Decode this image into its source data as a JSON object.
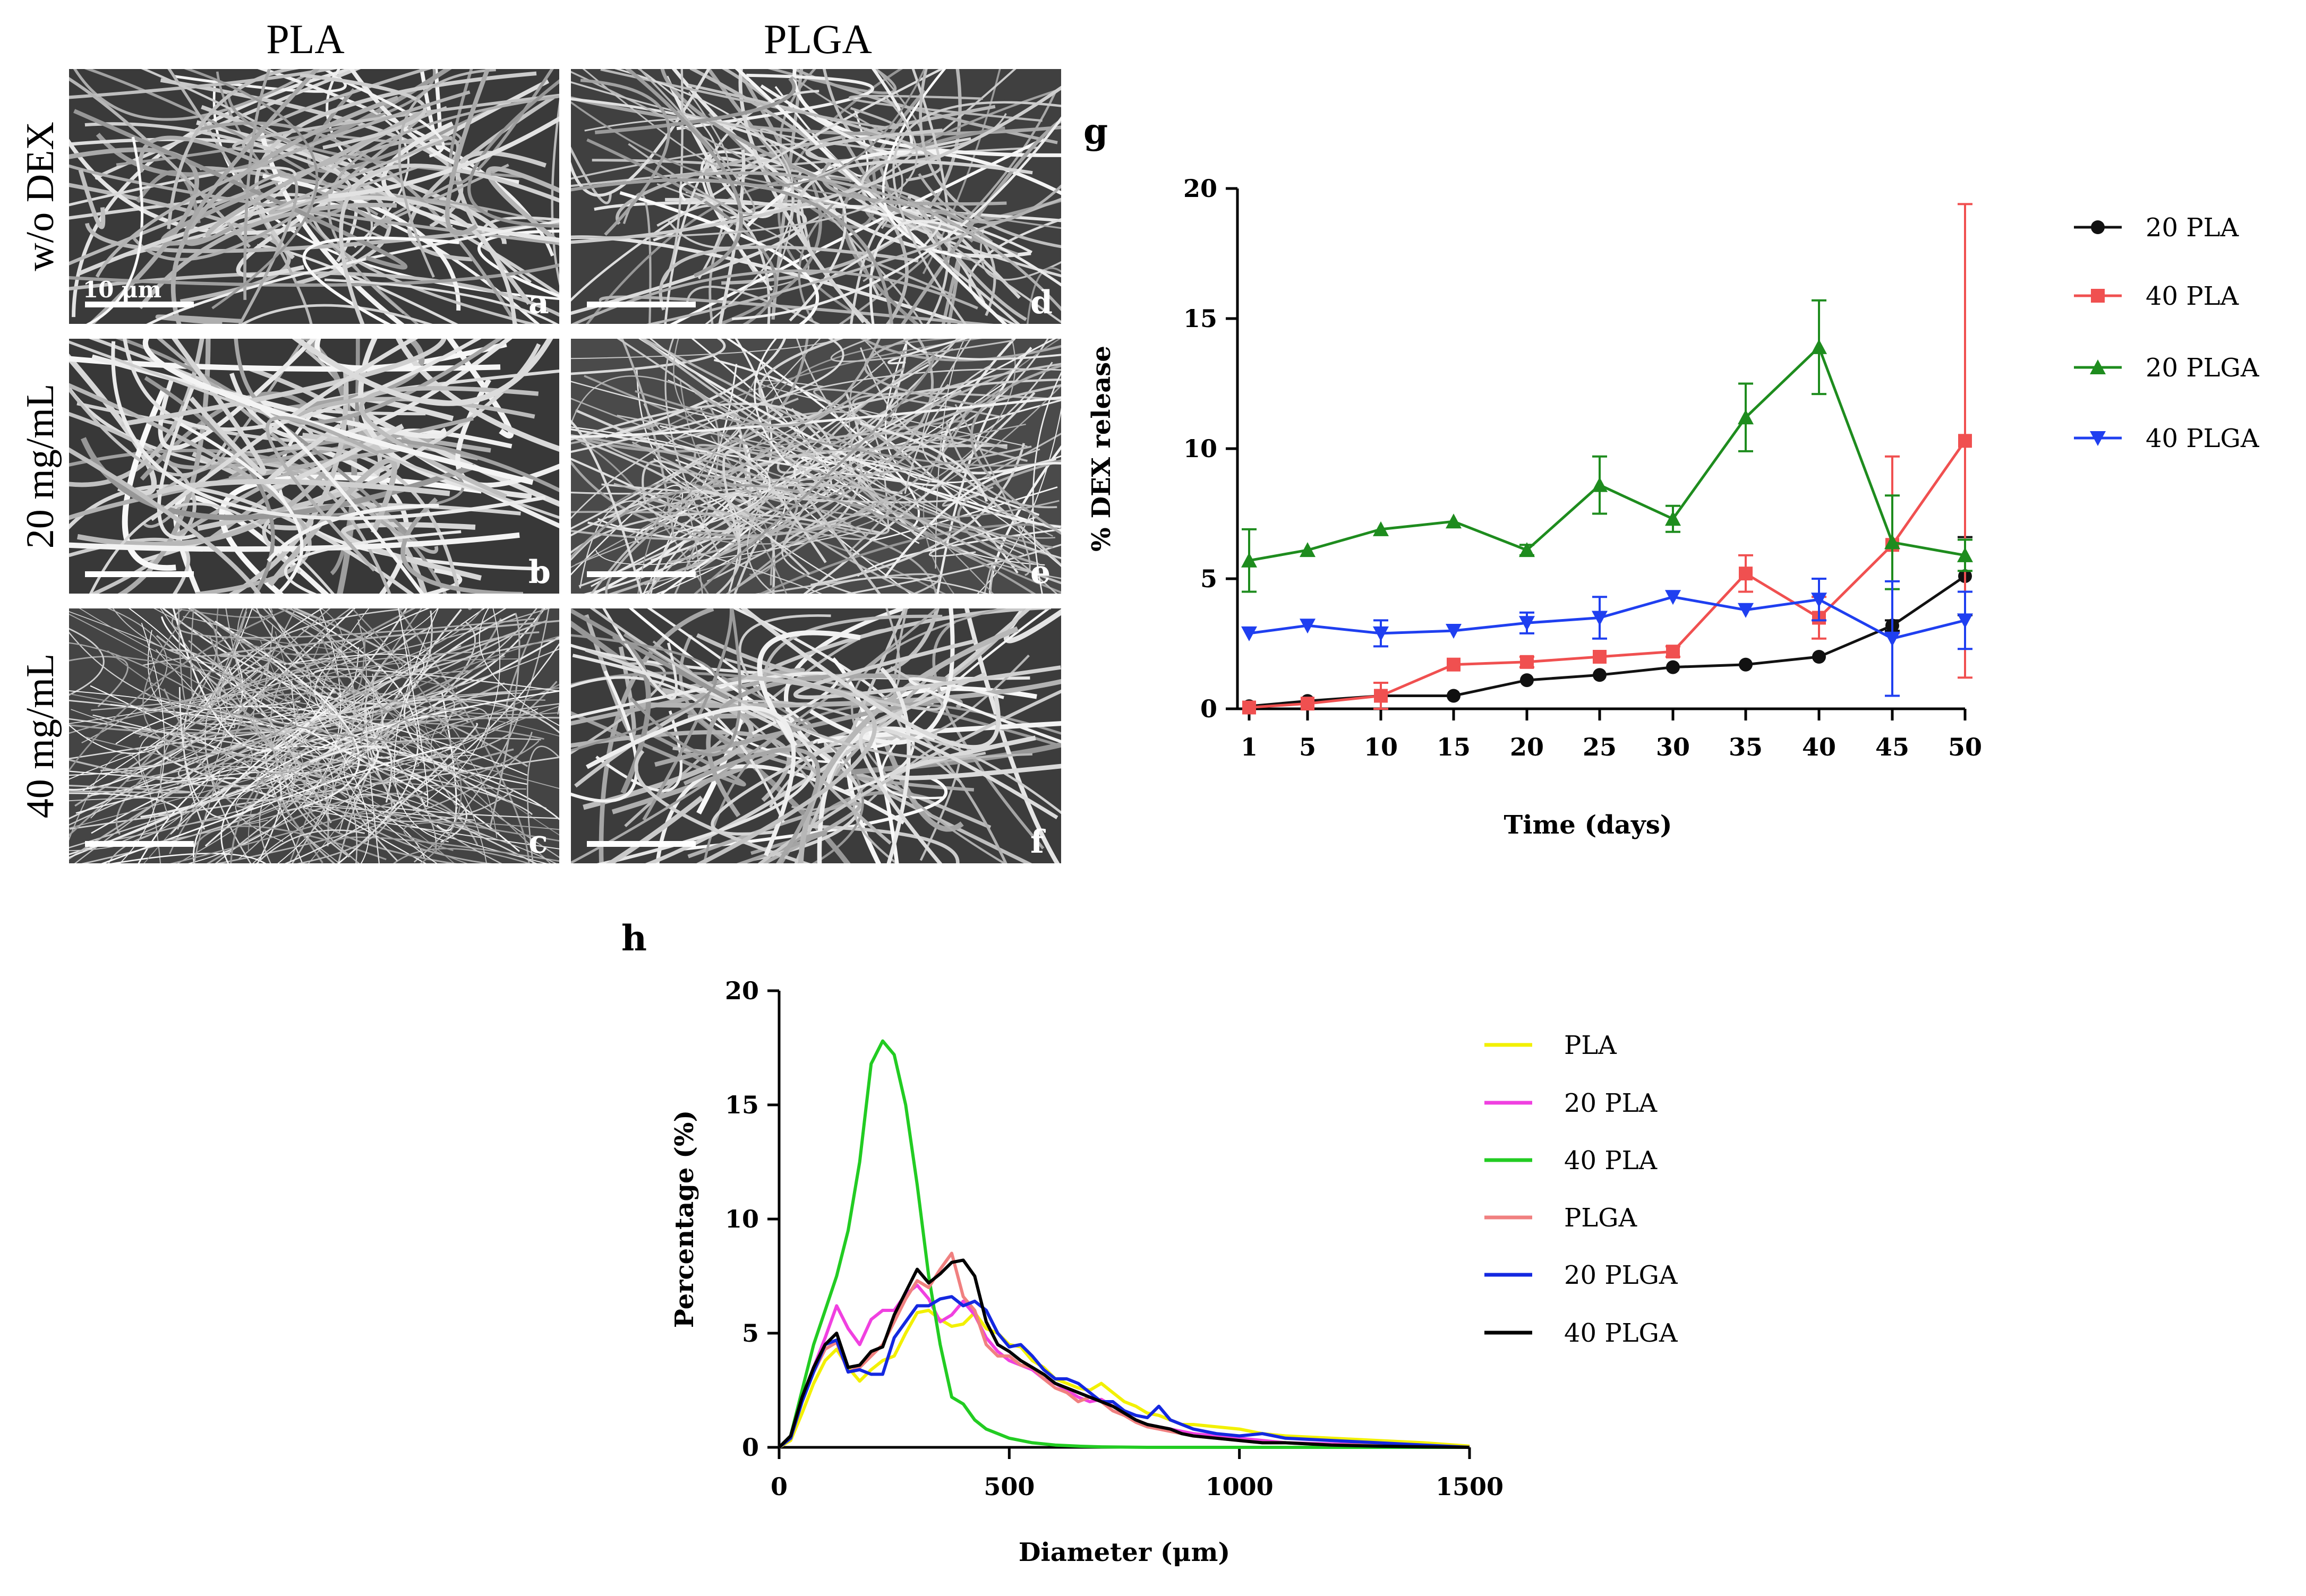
{
  "sem_figure": {
    "columns": [
      "PLA",
      "PLGA"
    ],
    "rows": [
      "w/o DEX",
      "20 mg/mL",
      "40 mg/mL"
    ],
    "panels": [
      {
        "letter": "a",
        "row": 0,
        "col": 0,
        "texture": "pla-dense"
      },
      {
        "letter": "d",
        "row": 0,
        "col": 1,
        "texture": "plga-dense"
      },
      {
        "letter": "b",
        "row": 1,
        "col": 0,
        "texture": "pla-thick"
      },
      {
        "letter": "e",
        "row": 1,
        "col": 1,
        "texture": "plga-fine"
      },
      {
        "letter": "c",
        "row": 2,
        "col": 0,
        "texture": "pla-fine"
      },
      {
        "letter": "f",
        "row": 2,
        "col": 1,
        "texture": "plga-thick"
      }
    ],
    "scale_bar_label": "10 μm"
  },
  "chart_data": [
    {
      "panel_letter": "g",
      "type": "line",
      "title": "",
      "xlabel": "Time (days)",
      "ylabel": "% DEX release",
      "categories": [
        "1",
        "5",
        "10",
        "15",
        "20",
        "25",
        "30",
        "35",
        "40",
        "45",
        "50"
      ],
      "ylim": [
        0,
        20
      ],
      "yticks": [
        0,
        5,
        10,
        15,
        20
      ],
      "legend_position": "right",
      "series": [
        {
          "name": "20 PLA",
          "color": "#111111",
          "marker": "circle",
          "values": [
            0.1,
            0.3,
            0.5,
            0.5,
            1.1,
            1.3,
            1.6,
            1.7,
            2.0,
            3.2,
            5.1
          ],
          "errors": [
            0.1,
            0.05,
            0.1,
            0.1,
            0.1,
            0.1,
            0.1,
            0.1,
            0.1,
            0.2,
            1.5
          ]
        },
        {
          "name": "40 PLA",
          "color": "#f05050",
          "marker": "square",
          "values": [
            0.05,
            0.2,
            0.5,
            1.7,
            1.8,
            2.0,
            2.2,
            5.2,
            3.5,
            6.3,
            10.3
          ],
          "errors": [
            0.05,
            0.1,
            0.5,
            0.1,
            0.2,
            0.1,
            0.2,
            0.7,
            0.8,
            3.4,
            9.1
          ]
        },
        {
          "name": "20 PLGA",
          "color": "#1e8c1e",
          "marker": "triangle-up",
          "values": [
            5.7,
            6.1,
            6.9,
            7.2,
            6.1,
            8.6,
            7.3,
            11.2,
            13.9,
            6.4,
            5.9
          ],
          "errors": [
            1.2,
            0.1,
            0.1,
            0.1,
            0.2,
            1.1,
            0.5,
            1.3,
            1.8,
            1.8,
            0.6
          ]
        },
        {
          "name": "40 PLGA",
          "color": "#1f3ff0",
          "marker": "triangle-down",
          "values": [
            2.9,
            3.2,
            2.9,
            3.0,
            3.3,
            3.5,
            4.3,
            3.8,
            4.2,
            2.7,
            3.4
          ],
          "errors": [
            0.1,
            0.1,
            0.5,
            0.1,
            0.4,
            0.8,
            0.1,
            0.1,
            0.8,
            2.2,
            1.1
          ]
        }
      ]
    },
    {
      "panel_letter": "h",
      "type": "line",
      "title": "",
      "xlabel": "Diameter (μm)",
      "ylabel": "Percentage (%)",
      "xlim": [
        0,
        1500
      ],
      "ylim": [
        0,
        20
      ],
      "xticks": [
        0,
        500,
        1000,
        1500
      ],
      "yticks": [
        0,
        5,
        10,
        15,
        20
      ],
      "legend_position": "right",
      "series": [
        {
          "name": "PLA",
          "color": "#f2f000",
          "x": [
            0,
            25,
            50,
            75,
            100,
            125,
            150,
            175,
            200,
            225,
            250,
            275,
            300,
            325,
            350,
            375,
            400,
            425,
            450,
            475,
            500,
            525,
            550,
            575,
            600,
            625,
            650,
            675,
            700,
            725,
            750,
            775,
            800,
            825,
            850,
            875,
            900,
            950,
            1000,
            1050,
            1100,
            1200,
            1300,
            1400,
            1500
          ],
          "y": [
            0,
            0.3,
            1.5,
            2.8,
            3.8,
            4.3,
            3.5,
            2.9,
            3.4,
            3.8,
            4.0,
            5.0,
            5.9,
            6.0,
            5.6,
            5.3,
            5.4,
            5.9,
            5.2,
            5.0,
            4.5,
            4.4,
            3.8,
            3.5,
            3.0,
            2.8,
            2.6,
            2.5,
            2.8,
            2.4,
            2.0,
            1.8,
            1.5,
            1.4,
            1.2,
            1.0,
            1.0,
            0.9,
            0.8,
            0.6,
            0.5,
            0.4,
            0.3,
            0.2,
            0.05
          ]
        },
        {
          "name": "20 PLA",
          "color": "#f040e0",
          "x": [
            0,
            25,
            50,
            75,
            100,
            125,
            150,
            175,
            200,
            225,
            250,
            275,
            300,
            325,
            350,
            375,
            400,
            425,
            450,
            475,
            500,
            525,
            550,
            575,
            600,
            625,
            650,
            675,
            700,
            725,
            750,
            775,
            800,
            825,
            850,
            875,
            900,
            950,
            1000,
            1050,
            1100,
            1200,
            1300,
            1400,
            1500
          ],
          "y": [
            0,
            0.5,
            2.2,
            3.5,
            4.8,
            6.2,
            5.2,
            4.5,
            5.6,
            6.0,
            6.0,
            6.7,
            7.1,
            6.5,
            5.5,
            5.8,
            6.4,
            5.8,
            4.8,
            4.2,
            3.8,
            3.6,
            3.4,
            3.0,
            2.8,
            2.5,
            2.2,
            2.0,
            2.1,
            1.8,
            1.5,
            1.2,
            1.0,
            0.9,
            0.8,
            0.7,
            0.6,
            0.5,
            0.4,
            0.3,
            0.2,
            0.15,
            0.1,
            0.05,
            0.0
          ]
        },
        {
          "name": "40 PLA",
          "color": "#22cc22",
          "x": [
            0,
            25,
            50,
            75,
            100,
            125,
            150,
            175,
            200,
            225,
            250,
            275,
            300,
            325,
            350,
            375,
            400,
            425,
            450,
            475,
            500,
            550,
            600,
            650,
            700,
            800,
            900,
            1000,
            1500
          ],
          "y": [
            0,
            0.5,
            2.5,
            4.5,
            6.0,
            7.5,
            9.5,
            12.5,
            16.8,
            17.8,
            17.2,
            15.0,
            11.5,
            7.5,
            4.5,
            2.2,
            1.9,
            1.2,
            0.8,
            0.6,
            0.4,
            0.2,
            0.1,
            0.05,
            0.02,
            0.0,
            0.0,
            0.0,
            0.0
          ]
        },
        {
          "name": "PLGA",
          "color": "#f08080",
          "x": [
            0,
            25,
            50,
            75,
            100,
            125,
            150,
            175,
            200,
            225,
            250,
            275,
            300,
            325,
            350,
            375,
            400,
            425,
            450,
            475,
            500,
            525,
            550,
            575,
            600,
            625,
            650,
            675,
            700,
            725,
            750,
            775,
            800,
            825,
            850,
            875,
            900,
            950,
            1000,
            1050,
            1100,
            1200,
            1300,
            1400,
            1500
          ],
          "y": [
            0,
            0.4,
            2.0,
            3.3,
            4.3,
            4.6,
            3.3,
            3.5,
            4.0,
            4.5,
            5.5,
            6.5,
            7.3,
            7.0,
            7.8,
            8.5,
            6.6,
            6.0,
            4.5,
            4.0,
            4.0,
            3.6,
            3.5,
            3.0,
            2.6,
            2.4,
            2.0,
            2.2,
            2.0,
            1.6,
            1.4,
            1.1,
            0.9,
            0.8,
            0.7,
            0.6,
            0.5,
            0.4,
            0.3,
            0.2,
            0.2,
            0.1,
            0.1,
            0.05,
            0.0
          ]
        },
        {
          "name": "20 PLGA",
          "color": "#1428e0",
          "x": [
            0,
            25,
            50,
            75,
            100,
            125,
            150,
            175,
            200,
            225,
            250,
            275,
            300,
            325,
            350,
            375,
            400,
            425,
            450,
            475,
            500,
            525,
            550,
            575,
            600,
            625,
            650,
            675,
            700,
            725,
            750,
            775,
            800,
            825,
            850,
            875,
            900,
            950,
            1000,
            1050,
            1100,
            1200,
            1300,
            1400,
            1500
          ],
          "y": [
            0,
            0.4,
            2.0,
            3.3,
            4.5,
            4.7,
            3.3,
            3.4,
            3.2,
            3.2,
            4.8,
            5.5,
            6.2,
            6.2,
            6.5,
            6.6,
            6.2,
            6.4,
            6.0,
            5.0,
            4.4,
            4.5,
            4.0,
            3.4,
            3.0,
            3.0,
            2.8,
            2.4,
            2.0,
            2.0,
            1.6,
            1.4,
            1.3,
            1.8,
            1.2,
            1.0,
            0.8,
            0.6,
            0.5,
            0.6,
            0.4,
            0.3,
            0.2,
            0.1,
            0.0
          ]
        },
        {
          "name": "40 PLGA",
          "color": "#000000",
          "x": [
            0,
            25,
            50,
            75,
            100,
            125,
            150,
            175,
            200,
            225,
            250,
            275,
            300,
            325,
            350,
            375,
            400,
            425,
            450,
            475,
            500,
            525,
            550,
            575,
            600,
            625,
            650,
            675,
            700,
            725,
            750,
            775,
            800,
            825,
            850,
            875,
            900,
            950,
            1000,
            1050,
            1100,
            1200,
            1300,
            1400,
            1500
          ],
          "y": [
            0,
            0.5,
            2.2,
            3.5,
            4.5,
            5.0,
            3.5,
            3.6,
            4.2,
            4.4,
            5.8,
            6.8,
            7.8,
            7.2,
            7.6,
            8.1,
            8.2,
            7.5,
            5.5,
            4.5,
            4.2,
            3.8,
            3.5,
            3.2,
            2.8,
            2.6,
            2.4,
            2.2,
            2.0,
            1.8,
            1.5,
            1.2,
            1.0,
            0.9,
            0.8,
            0.6,
            0.5,
            0.4,
            0.3,
            0.2,
            0.2,
            0.1,
            0.05,
            0.02,
            0.0
          ]
        }
      ]
    }
  ]
}
